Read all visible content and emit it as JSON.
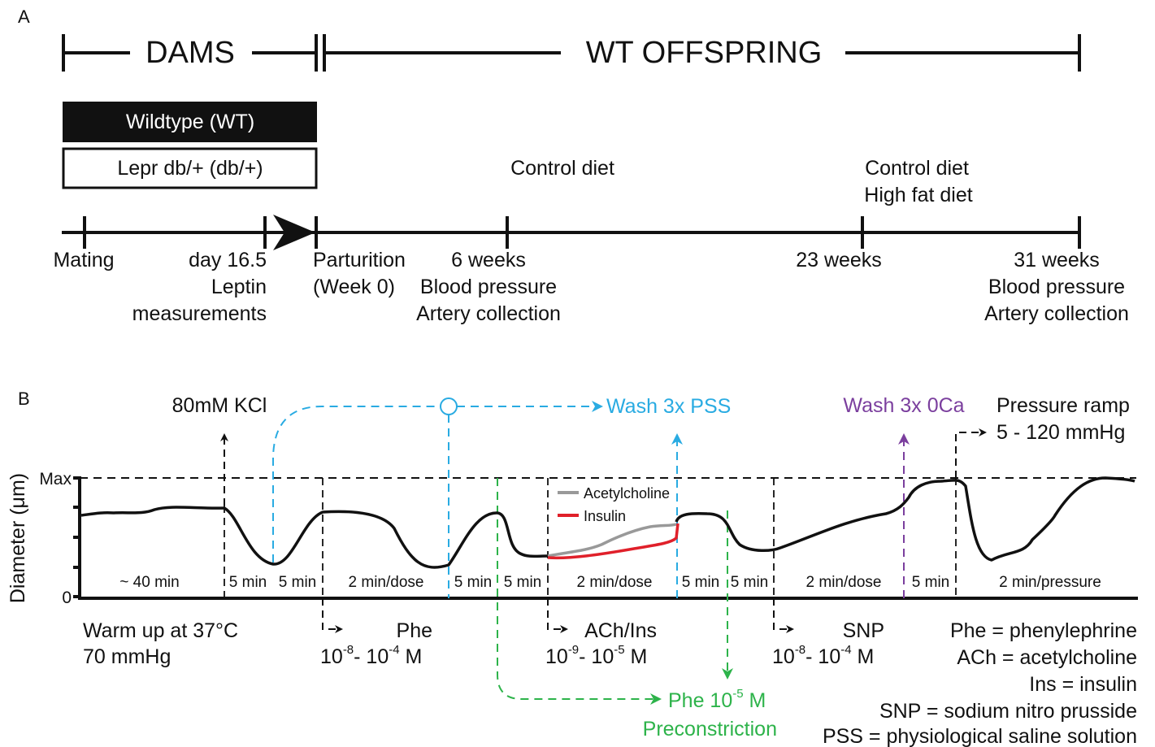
{
  "colors": {
    "black": "#111111",
    "cyan": "#29abe2",
    "green": "#2db34a",
    "purple": "#7b3f9e",
    "grey": "#999999",
    "red": "#e0202a"
  },
  "panelA": {
    "label": "A",
    "dams": "DAMS",
    "offspring": "WT OFFSPRING",
    "box_wt": "Wildtype (WT)",
    "box_db": "Lepr db/+ (db/+)",
    "diet1": "Control diet",
    "diet2a": "Control diet",
    "diet2b": "High fat diet",
    "mating": "Mating",
    "day": [
      "day 16.5",
      "Leptin",
      "measurements"
    ],
    "parturition": [
      "Parturition",
      "(Week 0)"
    ],
    "w6": [
      "6 weeks",
      "Blood pressure",
      "Artery collection"
    ],
    "w23": "23 weeks",
    "w31": [
      "31 weeks",
      "Blood pressure",
      "Artery collection"
    ]
  },
  "panelB": {
    "label": "B",
    "ylabel": "Diameter (μm)",
    "ymax": "Max",
    "yzero": "0",
    "kcl": "80mM KCl",
    "wash_pss": "Wash 3x PSS",
    "wash_0ca": "Wash 3x 0Ca",
    "pressure": [
      "Pressure ramp",
      "5 - 120 mmHg"
    ],
    "legend": [
      "Acetylcholine",
      "Insulin"
    ],
    "intervals": [
      "~ 40 min",
      "5 min",
      "5 min",
      "2 min/dose",
      "5 min",
      "5 min",
      "2 min/dose",
      "5 min",
      "5 min",
      "2 min/dose",
      "5 min",
      "2 min/pressure"
    ],
    "warmup": [
      "Warm up at 37°C",
      "70 mmHg"
    ],
    "phe": {
      "name": "Phe",
      "base1": "10",
      "exp1": "-8",
      "dash": "- 10",
      "exp2": "-4",
      "unit": " M"
    },
    "ach": {
      "name": "ACh/Ins",
      "base1": "10",
      "exp1": "-9",
      "dash": "- 10",
      "exp2": "-5",
      "unit": " M"
    },
    "snp": {
      "name": "SNP",
      "base1": "10",
      "exp1": "-8",
      "dash": "- 10",
      "exp2": "-4",
      "unit": " M"
    },
    "precon": {
      "name": "Phe 10",
      "exp": "-5",
      "unit": " M",
      "label": "Preconstriction"
    },
    "abbrev": [
      "Phe = phenylephrine",
      "ACh = acetylcholine",
      "Ins = insulin",
      "SNP = sodium nitro prusside",
      "PSS = physiological saline solution"
    ]
  }
}
